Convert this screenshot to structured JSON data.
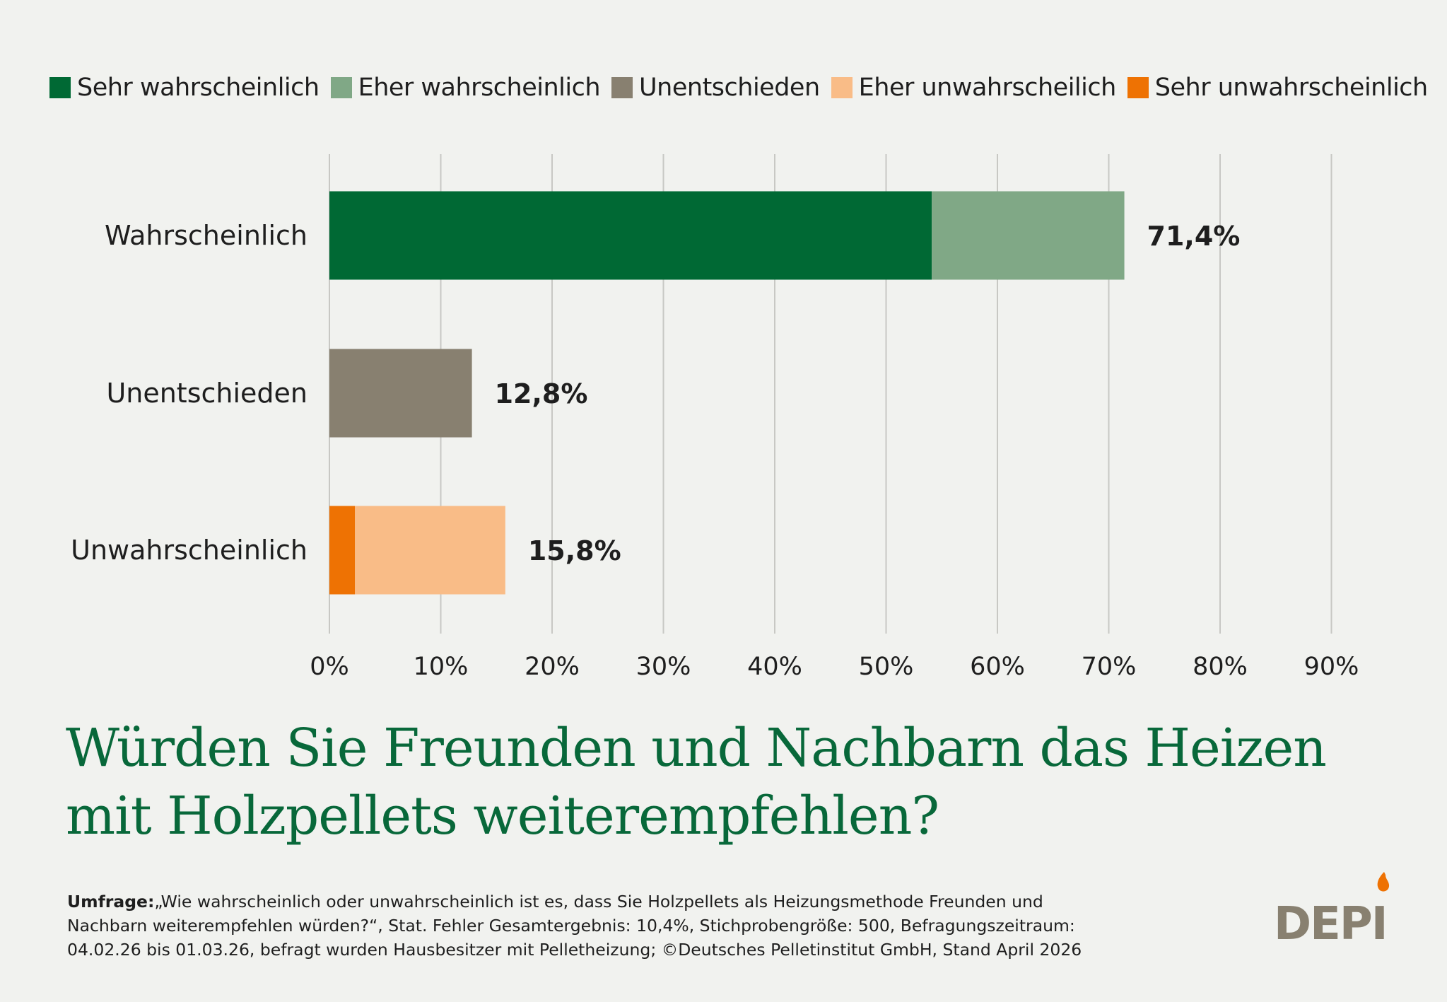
{
  "legend": [
    {
      "label": "Sehr wahrscheinlich",
      "color": "#006934"
    },
    {
      "label": "Eher wahrscheinlich",
      "color": "#80a886"
    },
    {
      "label": "Unentschieden",
      "color": "#888070"
    },
    {
      "label": "Eher unwahrscheilich",
      "color": "#f9bc87"
    },
    {
      "label": "Sehr unwahrscheinlich",
      "color": "#ee7203"
    }
  ],
  "chart_data": {
    "type": "bar",
    "orientation": "horizontal",
    "stacked": true,
    "categories": [
      "Wahrscheinlich",
      "Unentschieden",
      "Unwahrscheinlich"
    ],
    "series": [
      {
        "name": "Sehr wahrscheinlich",
        "color": "#006934",
        "values": [
          54.1,
          0,
          0
        ]
      },
      {
        "name": "Eher wahrscheinlich",
        "color": "#80a886",
        "values": [
          17.3,
          0,
          0
        ]
      },
      {
        "name": "Unentschieden",
        "color": "#888070",
        "values": [
          0,
          12.8,
          0
        ]
      },
      {
        "name": "Sehr unwahrscheinlich",
        "color": "#ee7203",
        "values": [
          0,
          0,
          2.3
        ]
      },
      {
        "name": "Eher unwahrscheilich",
        "color": "#f9bc87",
        "values": [
          0,
          0,
          13.5
        ]
      }
    ],
    "totals": [
      "71,4%",
      "12,8%",
      "15,8%"
    ],
    "xlim": [
      0,
      90
    ],
    "xticks": [
      0,
      10,
      20,
      30,
      40,
      50,
      60,
      70,
      80,
      90
    ],
    "xtick_labels": [
      "0%",
      "10%",
      "20%",
      "30%",
      "40%",
      "50%",
      "60%",
      "70%",
      "80%",
      "90%"
    ],
    "grid": "vertical",
    "legend_position": "top"
  },
  "title": {
    "line1": "Würden Sie Freunden und Nachbarn das Heizen",
    "line2": "mit Holzpellets weiterempfehlen?"
  },
  "footnote": {
    "label": "Umfrage:",
    "line1": "„Wie wahrscheinlich oder unwahrscheinlich ist es, dass Sie Holzpellets als Heizungsmethode Freunden und",
    "line2": "Nachbarn weiterempfehlen würden?“, Stat. Fehler Gesamtergebnis: 10,4%, Stichprobengröße: 500, Befragungszeitraum:",
    "line3": "04.02.26 bis 01.03.26, befragt wurden Hausbesitzer mit Pelletheizung; ©Deutsches Pelletinstitut GmbH, Stand April 2026"
  },
  "logo": {
    "text": "DEPI",
    "color": "#888070",
    "flame_color": "#ee7203"
  }
}
